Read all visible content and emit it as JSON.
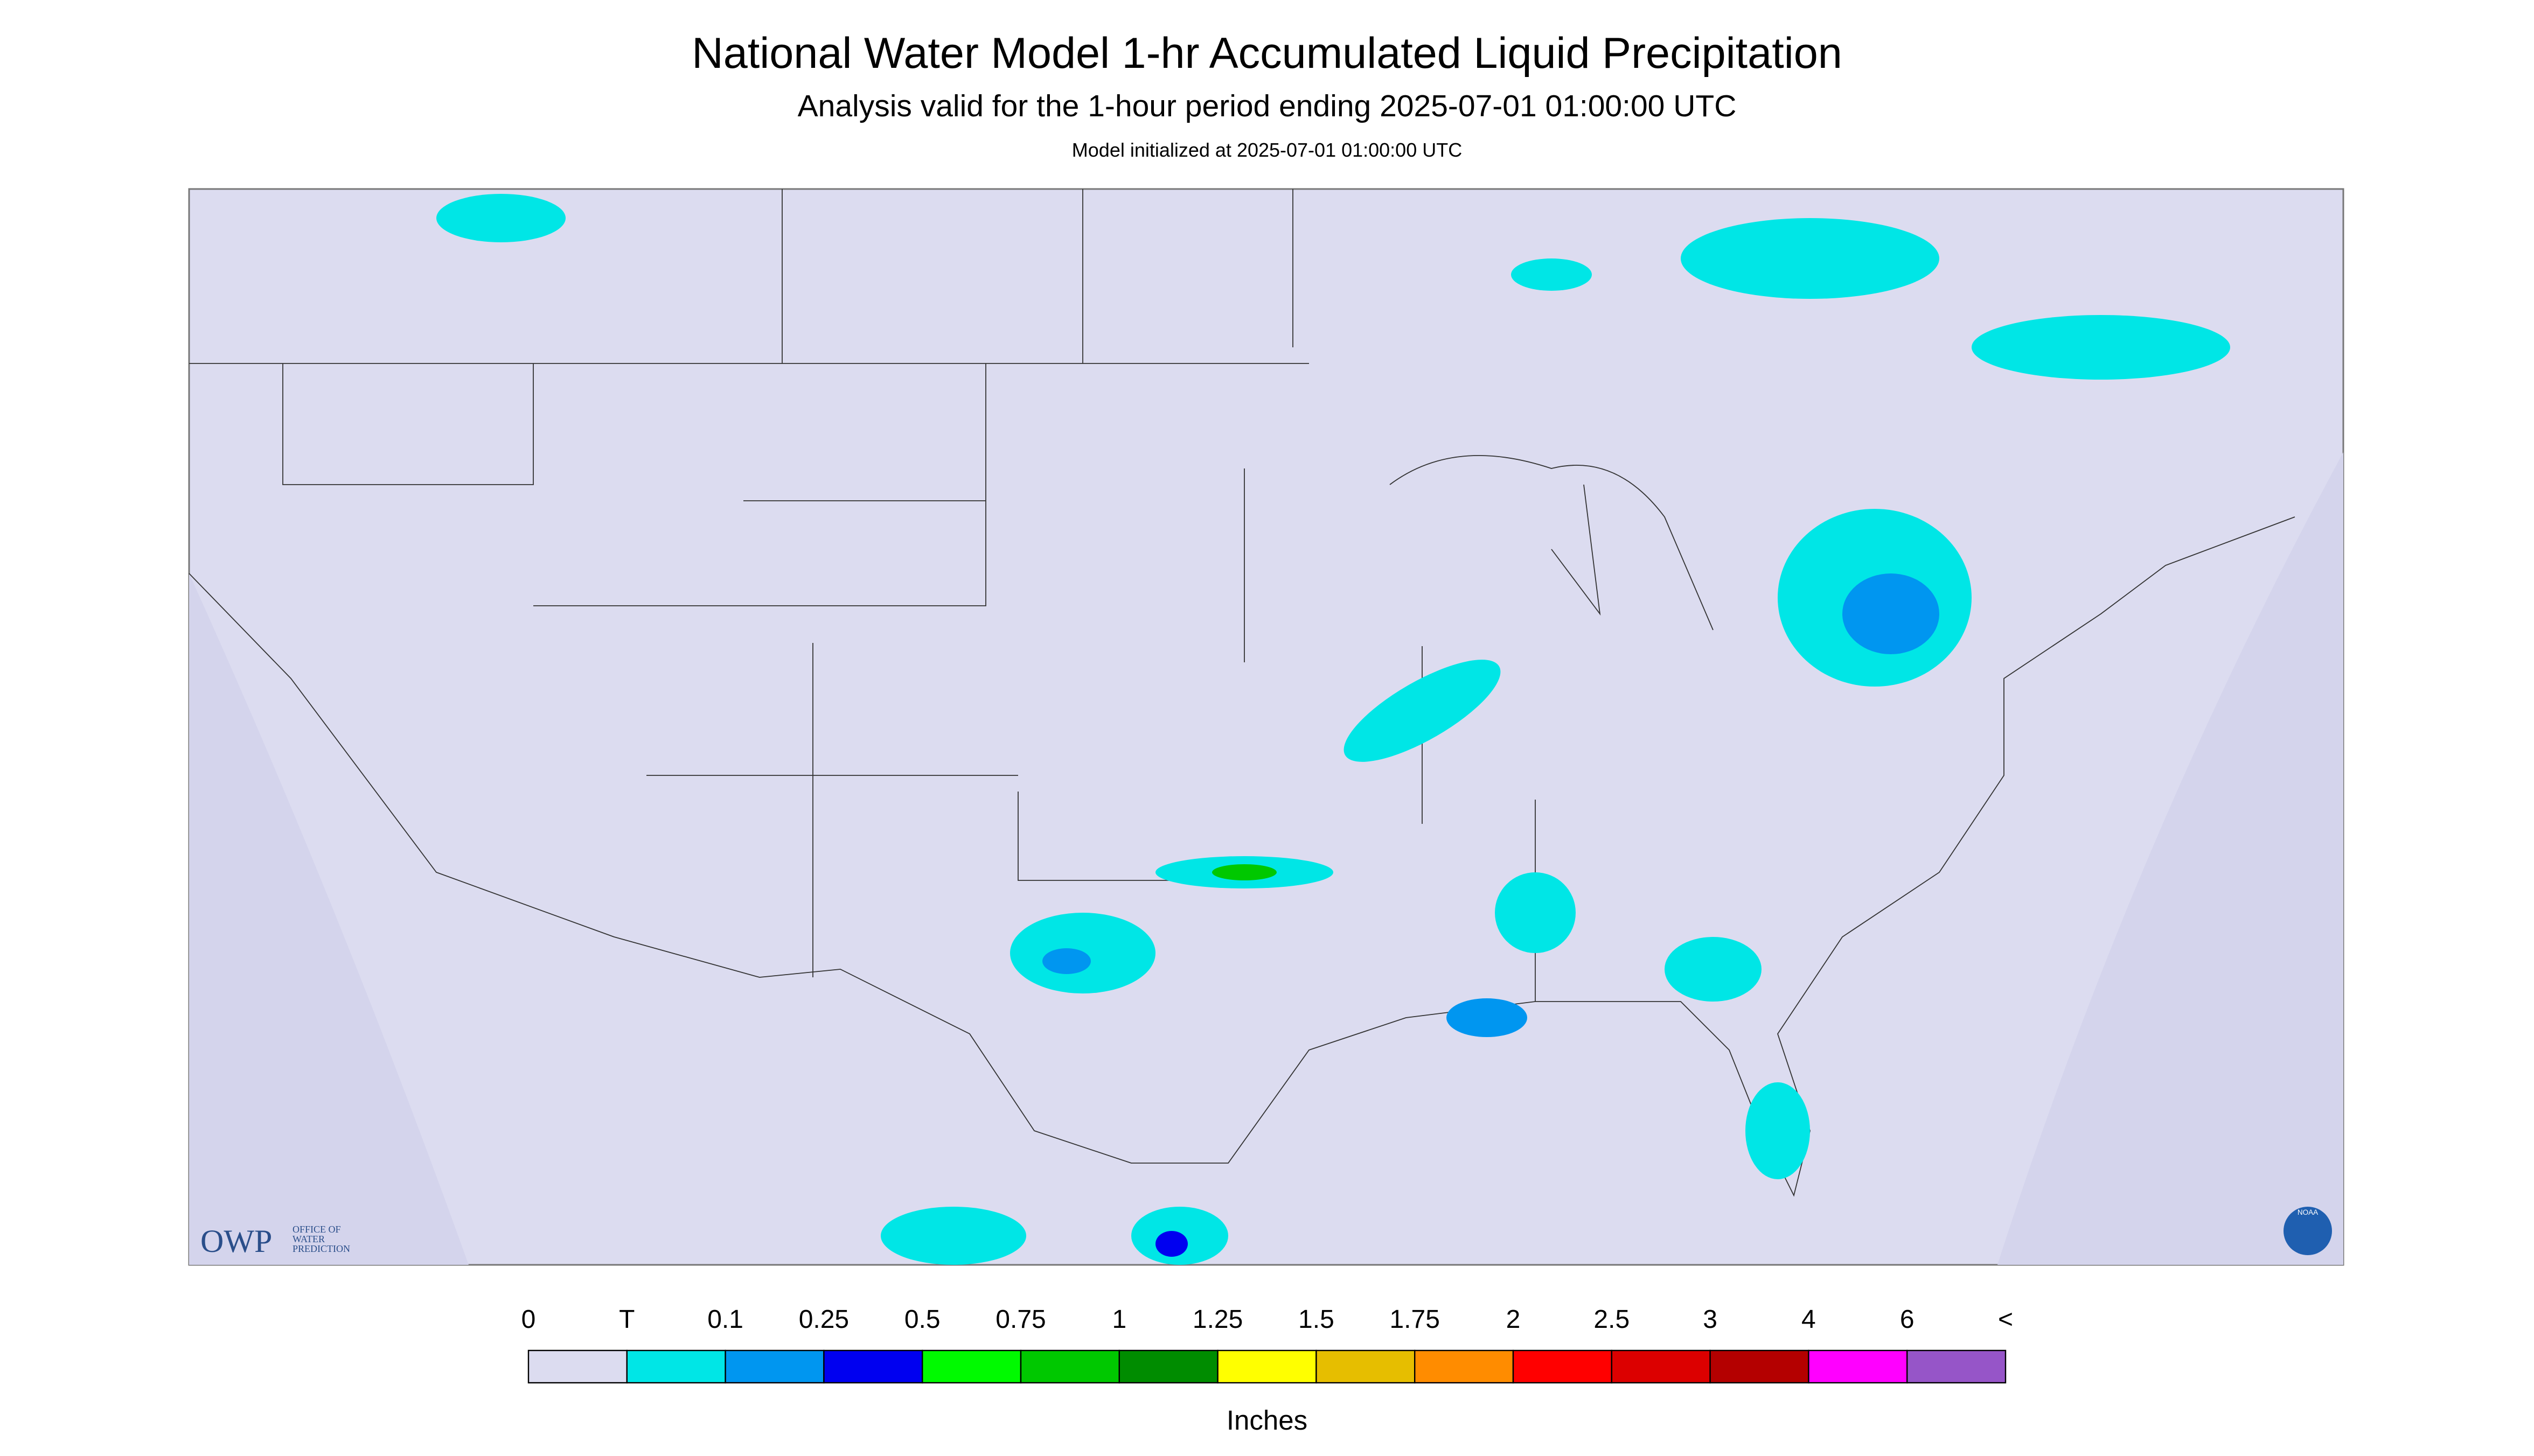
{
  "header": {
    "title": "National Water Model 1-hr Accumulated Liquid Precipitation",
    "subtitle": "Analysis valid for the 1-hour period ending 2025-07-01 01:00:00 UTC",
    "note": "Model initialized at 2025-07-01 01:00:00 UTC"
  },
  "logos": {
    "owp": "OWP",
    "owp_lines": [
      "OFFICE OF",
      "WATER",
      "PREDICTION"
    ],
    "noaa": "NOAA"
  },
  "legend": {
    "labels": [
      "0",
      "T",
      "0.1",
      "0.25",
      "0.5",
      "0.75",
      "1",
      "1.25",
      "1.5",
      "1.75",
      "2",
      "2.5",
      "3",
      "4",
      "6",
      "<"
    ],
    "colors": [
      "#dcdcf0",
      "#00e6e6",
      "#0096f0",
      "#0000f0",
      "#00fa00",
      "#00c800",
      "#008c00",
      "#ffff00",
      "#e6be00",
      "#ff8c00",
      "#ff0000",
      "#dc0000",
      "#b40000",
      "#ff00ff",
      "#9655c8"
    ],
    "unit": "Inches"
  }
}
